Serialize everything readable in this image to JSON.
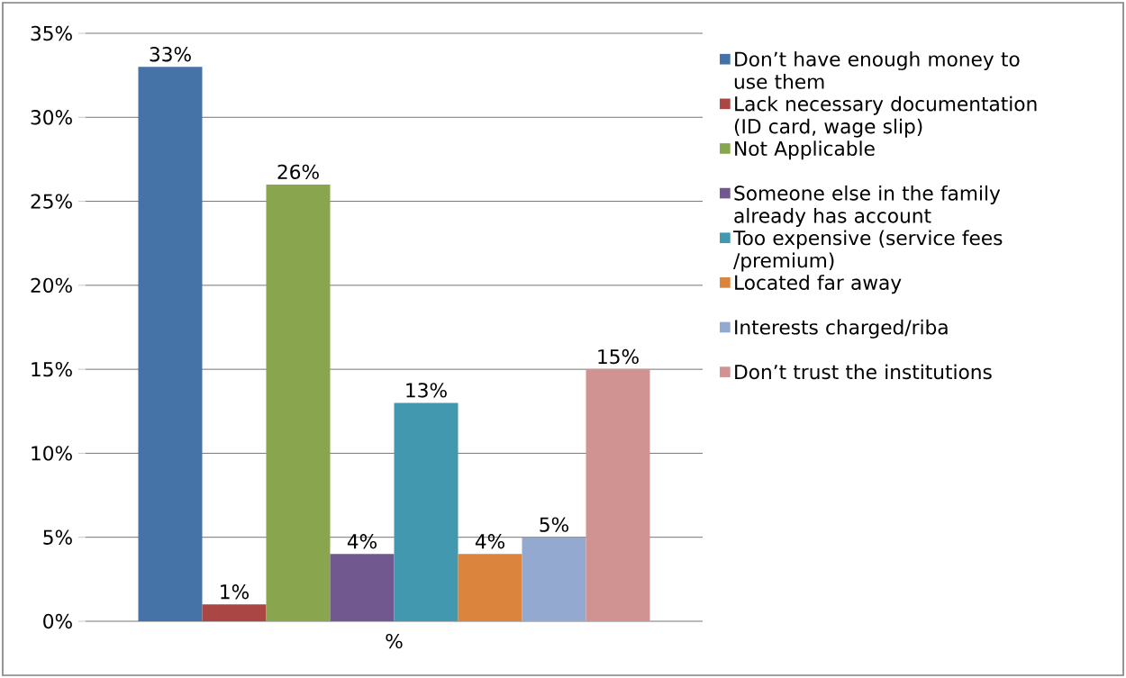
{
  "chart_data": {
    "type": "bar",
    "categories": [
      "%"
    ],
    "ylim": [
      0,
      35
    ],
    "yticks": [
      {
        "value": 0,
        "label": "0%"
      },
      {
        "value": 5,
        "label": "5%"
      },
      {
        "value": 10,
        "label": "10%"
      },
      {
        "value": 15,
        "label": "15%"
      },
      {
        "value": 20,
        "label": "20%"
      },
      {
        "value": 25,
        "label": "25%"
      },
      {
        "value": 30,
        "label": "30%"
      },
      {
        "value": 35,
        "label": "35%"
      }
    ],
    "grid": "y",
    "legend": "right",
    "series": [
      {
        "name": "Don’t have enough money to use them",
        "color": "#4572a7",
        "values": [
          33
        ],
        "value_labels": [
          "33%"
        ]
      },
      {
        "name": "Lack necessary documentation (ID card,  wage slip)",
        "color": "#aa4643",
        "values": [
          1
        ],
        "value_labels": [
          "1%"
        ]
      },
      {
        "name": "Not Applicable",
        "color": "#89a54e",
        "values": [
          26
        ],
        "value_labels": [
          "26%"
        ]
      },
      {
        "name": "Someone else in the family already has account",
        "color": "#71588f",
        "values": [
          4
        ],
        "value_labels": [
          "4%"
        ]
      },
      {
        "name": "Too expensive (service fees /premium)",
        "color": "#4198af",
        "values": [
          13
        ],
        "value_labels": [
          "13%"
        ]
      },
      {
        "name": "Located far away",
        "color": "#db843d",
        "values": [
          4
        ],
        "value_labels": [
          "4%"
        ]
      },
      {
        "name": "Interests charged/riba",
        "color": "#93a9cf",
        "values": [
          5
        ],
        "value_labels": [
          "5%"
        ]
      },
      {
        "name": "Don’t trust the institutions",
        "color": "#d19392",
        "values": [
          15
        ],
        "value_labels": [
          "15%"
        ]
      }
    ]
  }
}
